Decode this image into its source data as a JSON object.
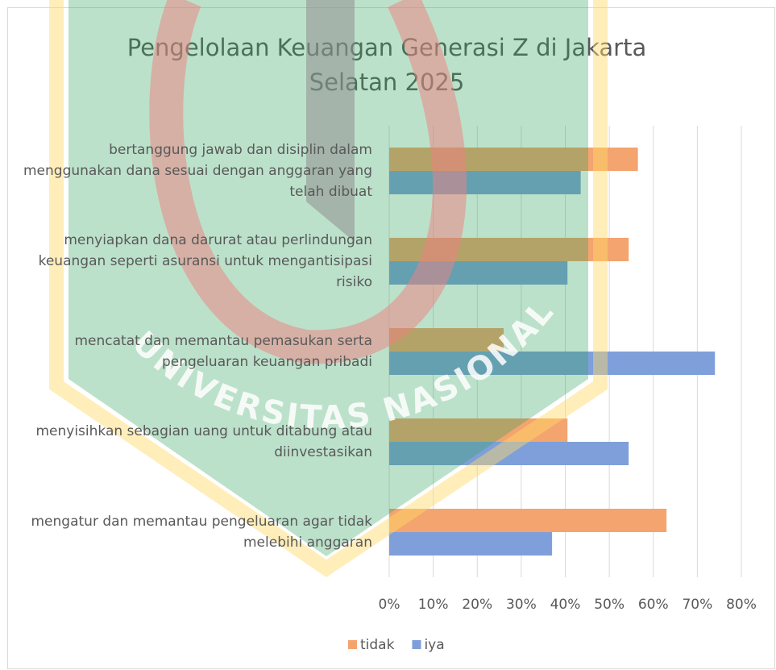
{
  "chart_data": {
    "type": "bar",
    "orientation": "horizontal",
    "title": "Pengelolaan Keuangan Generasi Z di Jakarta Selatan 2025",
    "categories": [
      "bertanggung jawab dan disiplin dalam menggunakan dana sesuai dengan anggaran yang telah dibuat",
      "menyiapkan dana darurat atau perlindungan keuangan seperti asuransi untuk mengantisipasi risiko",
      "mencatat dan memantau pemasukan serta pengeluaran keuangan pribadi",
      "menyisihkan sebagian uang untuk ditabung atau diinvestasikan",
      "mengatur dan memantau pengeluaran agar tidak melebihi anggaran"
    ],
    "series": [
      {
        "name": "tidak",
        "color": "#f4a46f",
        "values": [
          56.5,
          54.4,
          26,
          40.5,
          63
        ]
      },
      {
        "name": "iya",
        "color": "#7f9fda",
        "values": [
          43.5,
          40.5,
          74,
          54.4,
          37
        ]
      }
    ],
    "xlim": [
      0,
      80
    ],
    "xticks": [
      {
        "value": 0,
        "label": "0%"
      },
      {
        "value": 10,
        "label": "10%"
      },
      {
        "value": 20,
        "label": "20%"
      },
      {
        "value": 30,
        "label": "30%"
      },
      {
        "value": 40,
        "label": "40%"
      },
      {
        "value": 50,
        "label": "50%"
      },
      {
        "value": 60,
        "label": "60%"
      },
      {
        "value": 70,
        "label": "70%"
      },
      {
        "value": 80,
        "label": "80%"
      }
    ],
    "grid": true,
    "legend": "bottom",
    "watermark": "UNIVERSITAS NASIONAL"
  }
}
